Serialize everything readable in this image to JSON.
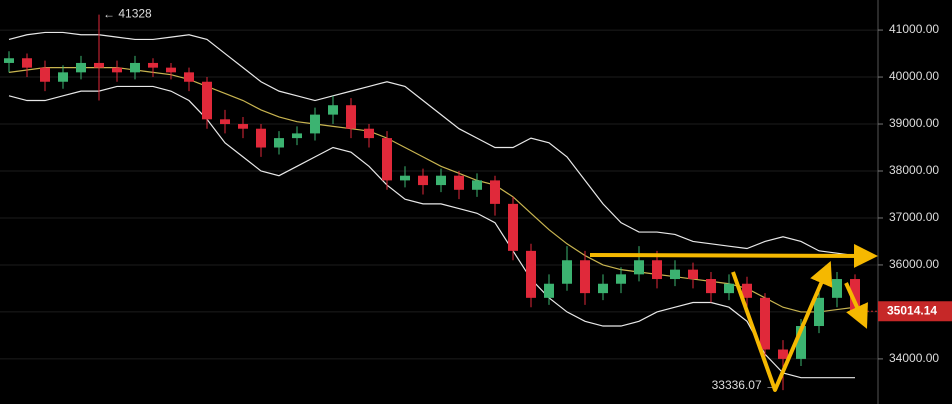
{
  "chart_data": {
    "type": "candlestick",
    "open": [
      40300,
      40400,
      40200,
      39900,
      40100,
      40300,
      40200,
      40100,
      40300,
      40200,
      40100,
      39900,
      39100,
      39000,
      38900,
      38500,
      38700,
      38800,
      39200,
      39400,
      38900,
      38700,
      37800,
      37900,
      37700,
      37900,
      37600,
      37800,
      37300,
      36300,
      35300,
      35600,
      36100,
      35400,
      35600,
      35800,
      36100,
      35700,
      35900,
      35700,
      35400,
      35600,
      35300,
      34200,
      34000,
      34700,
      35300,
      35700
    ],
    "high": [
      40550,
      40500,
      40350,
      40250,
      40450,
      41328,
      40350,
      40450,
      40400,
      40300,
      40200,
      40000,
      39300,
      39150,
      39000,
      38850,
      38950,
      39350,
      39600,
      39550,
      39000,
      38850,
      38100,
      38050,
      38050,
      38000,
      37950,
      37900,
      37450,
      36450,
      35800,
      36400,
      36300,
      35800,
      35950,
      36400,
      36300,
      36100,
      36050,
      35850,
      35800,
      35750,
      35400,
      34400,
      34850,
      35450,
      35850,
      35800
    ],
    "low": [
      40100,
      40000,
      39700,
      39750,
      39950,
      39500,
      39900,
      39950,
      40000,
      39950,
      39700,
      38900,
      38800,
      38700,
      38300,
      38350,
      38550,
      38650,
      39000,
      38700,
      38500,
      37600,
      37650,
      37500,
      37550,
      37400,
      37450,
      37050,
      36100,
      35100,
      35150,
      35450,
      35150,
      35250,
      35400,
      35650,
      35500,
      35550,
      35500,
      35200,
      35250,
      35100,
      33900,
      33336.07,
      33850,
      34550,
      35100,
      34900
    ],
    "close": [
      40400,
      40200,
      39900,
      40100,
      40300,
      40200,
      40100,
      40300,
      40200,
      40100,
      39900,
      39100,
      39000,
      38900,
      38500,
      38700,
      38800,
      39200,
      39400,
      38900,
      38700,
      37800,
      37900,
      37700,
      37900,
      37600,
      37800,
      37300,
      36300,
      35300,
      35600,
      36100,
      35400,
      35600,
      35800,
      36100,
      35700,
      35900,
      35700,
      35400,
      35600,
      35300,
      34200,
      34000,
      34700,
      35300,
      35700,
      35014.14
    ],
    "up_color": "#3cb371",
    "down_color": "#e0293a",
    "lines": [
      {
        "color": "#e8e8e8",
        "values": [
          40800,
          40900,
          40950,
          40950,
          40900,
          40900,
          40850,
          40800,
          40800,
          40850,
          40900,
          40800,
          40500,
          40200,
          39900,
          39700,
          39600,
          39500,
          39600,
          39700,
          39800,
          39900,
          39800,
          39500,
          39200,
          38900,
          38700,
          38500,
          38500,
          38700,
          38600,
          38300,
          37800,
          37300,
          36900,
          36700,
          36700,
          36650,
          36500,
          36450,
          36400,
          36350,
          36500,
          36600,
          36500,
          36300,
          36250,
          36200
        ]
      },
      {
        "color": "#e8e8e8",
        "values": [
          39600,
          39500,
          39500,
          39600,
          39700,
          39700,
          39800,
          39800,
          39800,
          39700,
          39500,
          39100,
          38600,
          38300,
          38000,
          37900,
          38100,
          38300,
          38500,
          38400,
          38100,
          37700,
          37400,
          37300,
          37300,
          37200,
          37100,
          36900,
          36300,
          35700,
          35300,
          35000,
          34800,
          34700,
          34700,
          34800,
          35000,
          35100,
          35200,
          35200,
          35100,
          34800,
          34100,
          33700,
          33600,
          33600,
          33600,
          33600
        ]
      },
      {
        "color": "#c8b450",
        "values": [
          40100,
          40150,
          40200,
          40200,
          40200,
          40200,
          40200,
          40150,
          40100,
          40050,
          39950,
          39800,
          39650,
          39500,
          39300,
          39150,
          39050,
          39000,
          38950,
          38900,
          38850,
          38700,
          38500,
          38300,
          38100,
          37950,
          37800,
          37700,
          37450,
          37100,
          36750,
          36450,
          36200,
          36000,
          35900,
          35850,
          35800,
          35750,
          35700,
          35650,
          35600,
          35500,
          35300,
          35100,
          35000,
          35000,
          35050,
          35100
        ]
      }
    ],
    "ylim": [
      33040,
      41640
    ],
    "yticks": [
      {
        "value": 34000,
        "label": "34000.00"
      },
      {
        "value": 35000,
        "label": "35000.00"
      },
      {
        "value": 36000,
        "label": "36000.00"
      },
      {
        "value": 37000,
        "label": "37000.00"
      },
      {
        "value": 38000,
        "label": "38000.00"
      },
      {
        "value": 39000,
        "label": "39000.00"
      },
      {
        "value": 40000,
        "label": "40000.00"
      },
      {
        "value": 41000,
        "label": "41000.00"
      }
    ],
    "last_price": 35014.14,
    "last_price_color": "#c62828",
    "grid": true
  }
}
